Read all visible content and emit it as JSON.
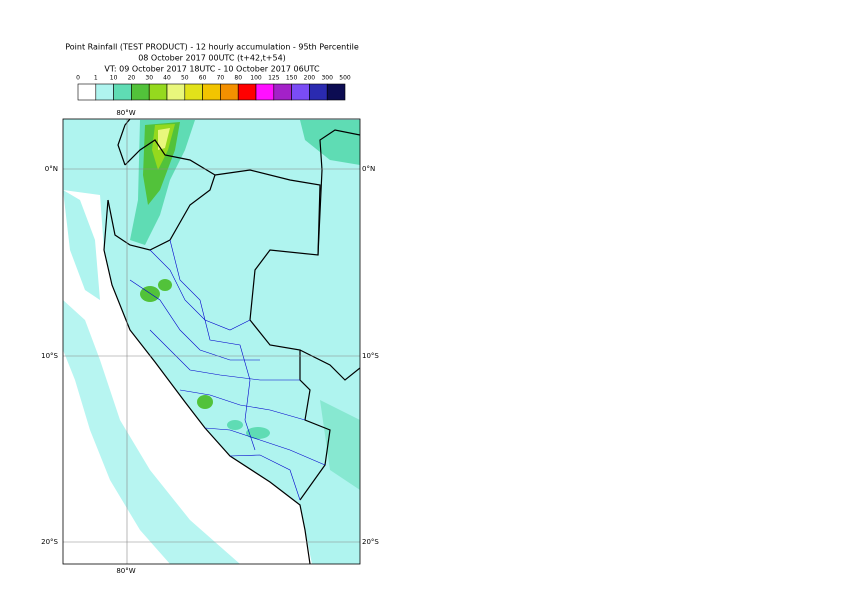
{
  "header": {
    "lines": [
      "Point Rainfall (TEST PRODUCT) - 12 hourly accumulation - 95th Percentile",
      "08 October 2017 00UTC (t+42,t+54)",
      "VT: 09 October 2017 18UTC - 10 October 2017 06UTC"
    ]
  },
  "legend": {
    "labels": [
      "0",
      "1",
      "10",
      "20",
      "30",
      "40",
      "50",
      "60",
      "70",
      "80",
      "100",
      "125",
      "150",
      "200",
      "300",
      "500"
    ],
    "colors": [
      "#ffffff",
      "#aff4ef",
      "#5fdcb4",
      "#52c23a",
      "#95d91e",
      "#e9f77c",
      "#e2e21a",
      "#f2c400",
      "#f49000",
      "#ff0000",
      "#ff10ff",
      "#a321c8",
      "#7a4cf5",
      "#2a2ab0",
      "#0c0c52"
    ]
  },
  "map": {
    "lon_label": "80°W",
    "lat_labels": [
      "0°N",
      "10°S",
      "20°S"
    ]
  }
}
